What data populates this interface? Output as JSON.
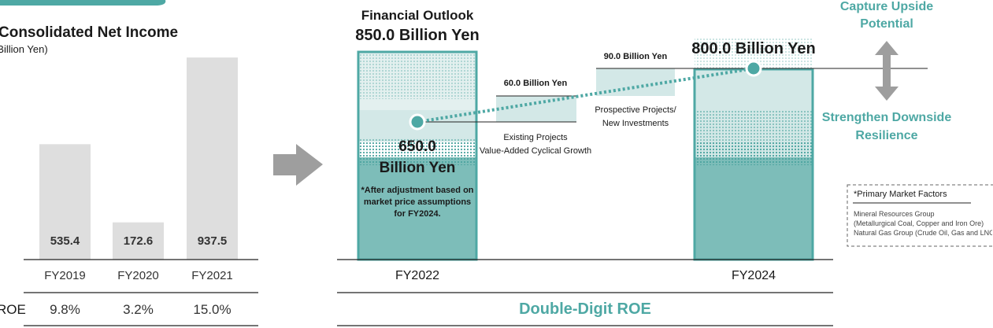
{
  "left_chart": {
    "title": "Consolidated Net Income",
    "unit": "(Billion Yen)",
    "roe_label": "ROE"
  },
  "right_chart": {
    "outlook_title": "Financial Outlook",
    "outlook_value": "850.0 Billion Yen",
    "base_value": "650.0",
    "base_unit": "Billion Yen",
    "adjustment_note": "*After adjustment based on market price assumptions for FY2024.",
    "target_value": "800.0 Billion Yen",
    "step1_label": "60.0 Billion Yen",
    "step1_desc_line1": "Existing Projects",
    "step1_desc_line2": "Value-Added Cyclical Growth",
    "step2_label": "90.0 Billion Yen",
    "step2_desc_line1": "Prospective Projects/",
    "step2_desc_line2": "New Investments",
    "upside_line1": "Capture Upside",
    "upside_line2": "Potential",
    "downside_line1": "Strengthen Downside",
    "downside_line2": "Resilience",
    "roe_text": "Double-Digit ROE",
    "factors_title": "*Primary Market Factors",
    "factors_line1": "Mineral Resources Group",
    "factors_line2": "(Metallurgical Coal, Copper and Iron Ore)",
    "factors_line3": "Natural Gas Group (Crude Oil, Gas and LNG)"
  },
  "colors": {
    "gray_bar": "#dedede",
    "teal": "#4ea8a4",
    "teal_dark": "#3f9d99",
    "teal_light": "#cfe6e5",
    "arrow_gray": "#9e9e9e"
  },
  "chart_data": [
    {
      "type": "bar",
      "title": "Consolidated Net Income",
      "ylabel": "(Billion Yen)",
      "categories": [
        "FY2019",
        "FY2020",
        "FY2021"
      ],
      "values": [
        535.4,
        172.6,
        937.5
      ],
      "value_labels": [
        "535.4",
        "172.6",
        "937.5"
      ],
      "roe": [
        "9.8%",
        "3.2%",
        "15.0%"
      ],
      "ylim": [
        0,
        1000
      ]
    },
    {
      "type": "bar",
      "title": "Financial Outlook",
      "categories": [
        "FY2022",
        "FY2024"
      ],
      "values": [
        850.0,
        800.0
      ],
      "base_value": 650.0,
      "steps": [
        {
          "label": "Existing Projects / Value-Added Cyclical Growth",
          "value": 60.0
        },
        {
          "label": "Prospective Projects / New Investments",
          "value": 90.0
        }
      ],
      "ylim": [
        0,
        1000
      ]
    }
  ]
}
